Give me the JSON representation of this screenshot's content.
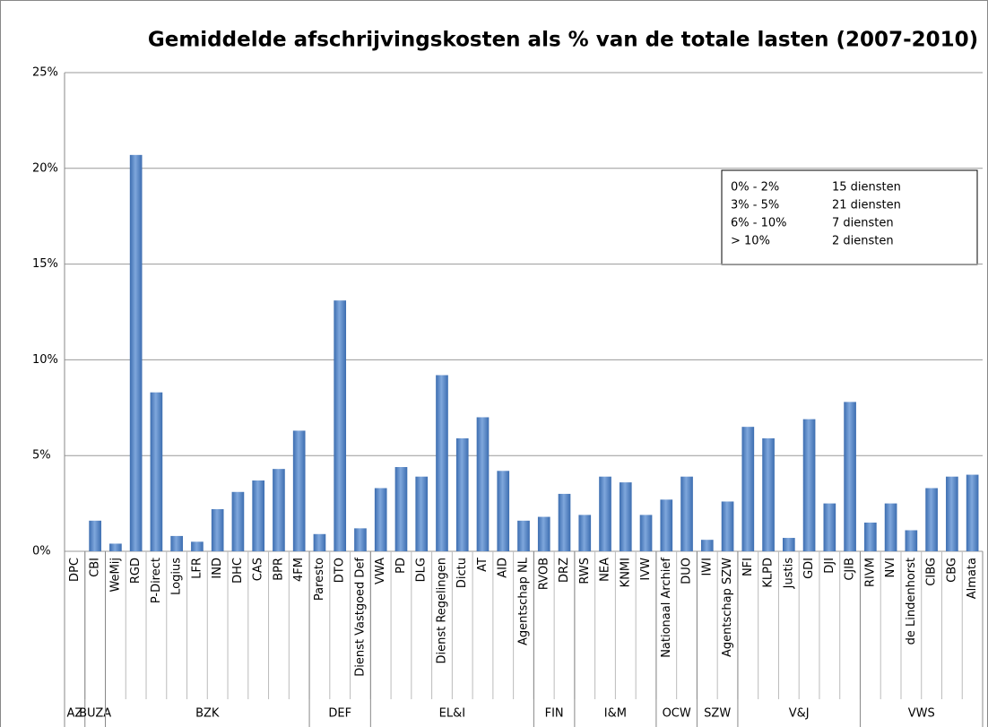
{
  "chart_data": {
    "type": "bar",
    "title": "Gemiddelde afschrijvingskosten als % van de totale lasten (2007-2010)",
    "groups": [
      {
        "name": "AZ",
        "categories": [
          "DPC"
        ]
      },
      {
        "name": "BUZA",
        "categories": [
          "CBI"
        ]
      },
      {
        "name": "BZK",
        "categories": [
          "WeMij",
          "RGD",
          "P-Direct",
          "Logius",
          "LFR",
          "IND",
          "DHC",
          "CAS",
          "BPR",
          "4FM"
        ]
      },
      {
        "name": "DEF",
        "categories": [
          "Paresto",
          "DTO",
          "Dienst Vastgoed Def"
        ]
      },
      {
        "name": "EL&I",
        "categories": [
          "VWA",
          "PD",
          "DLG",
          "Dienst Regelingen",
          "Dictu",
          "AT",
          "AID",
          "Agentschap NL"
        ]
      },
      {
        "name": "FIN",
        "categories": [
          "RVOB",
          "DRZ"
        ]
      },
      {
        "name": "I&M",
        "categories": [
          "RWS",
          "NEA",
          "KNMI",
          "IVW"
        ]
      },
      {
        "name": "OCW",
        "categories": [
          "Nationaal Archief",
          "DUO"
        ]
      },
      {
        "name": "SZW",
        "categories": [
          "IWI",
          "Agentschap SZW"
        ]
      },
      {
        "name": "V&J",
        "categories": [
          "NFI",
          "KLPD",
          "Justis",
          "GDI",
          "DJI",
          "CJIB"
        ]
      },
      {
        "name": "VWS",
        "categories": [
          "RIVM",
          "NVI",
          "de Lindenhorst",
          "CIBG",
          "CBG",
          "Almata"
        ]
      }
    ],
    "values": [
      0,
      1.6,
      0.4,
      20.7,
      8.3,
      0.8,
      0.5,
      2.2,
      3.1,
      3.7,
      4.3,
      6.3,
      0.9,
      13.1,
      1.2,
      3.3,
      4.4,
      3.9,
      9.2,
      5.9,
      7.0,
      4.2,
      1.6,
      1.8,
      3.0,
      1.9,
      3.9,
      3.6,
      1.9,
      2.7,
      3.9,
      0.6,
      2.6,
      6.5,
      5.9,
      0.7,
      6.9,
      2.5,
      7.8,
      1.5,
      2.5,
      1.1,
      3.3,
      3.9,
      4.0
    ],
    "color": "#3c6db0",
    "ylim": [
      0,
      25
    ],
    "yticks": [
      {
        "value": 0,
        "label": "0%"
      },
      {
        "value": 5,
        "label": "5%"
      },
      {
        "value": 10,
        "label": "10%"
      },
      {
        "value": 15,
        "label": "15%"
      },
      {
        "value": 20,
        "label": "20%"
      },
      {
        "value": 25,
        "label": "25%"
      }
    ],
    "grid": true,
    "annotation_rows": [
      [
        "0% - 2%",
        "15 diensten"
      ],
      [
        "3% - 5%",
        "21 diensten"
      ],
      [
        "6% - 10%",
        "7 diensten"
      ],
      [
        "> 10%",
        "2 diensten"
      ]
    ]
  }
}
